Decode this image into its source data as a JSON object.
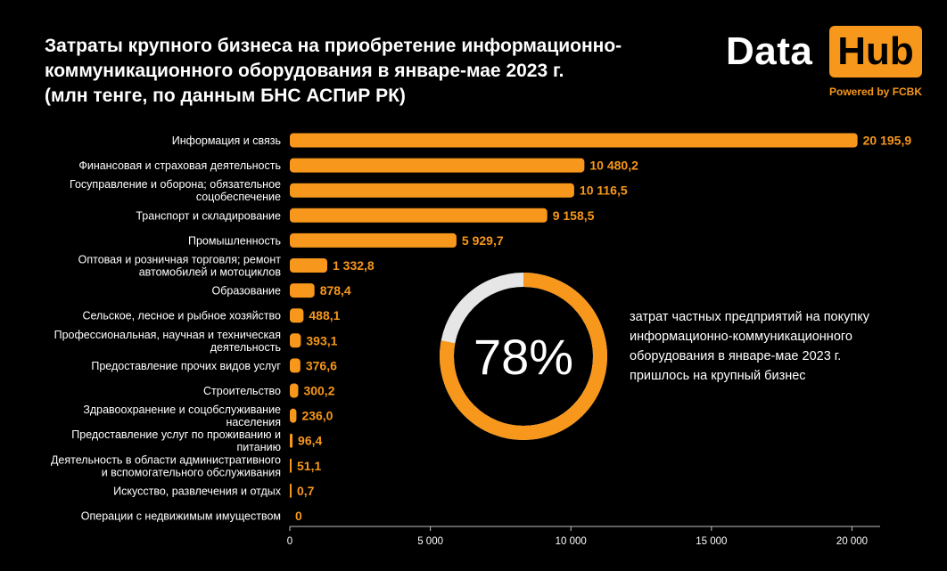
{
  "title_lines": [
    "Затраты крупного бизнеса на приобретение информационно-",
    "коммуникационного оборудования  в январе-мае 2023 г.",
    "(млн тенге, по данным БНС АСПиР РК)"
  ],
  "logo": {
    "data_text": "Data",
    "hub_text": "Hub",
    "powered_text": "Powered by FCBK"
  },
  "colors": {
    "accent": "#f7971b",
    "donut_rest": "#e6e6e6",
    "background": "#000000",
    "text": "#ffffff"
  },
  "chart_data": [
    {
      "type": "bar",
      "orientation": "horizontal",
      "categories": [
        [
          "Информация и связь"
        ],
        [
          "Финансовая и страховая деятельность"
        ],
        [
          "Госуправление и оборона; обязательное",
          "соцобеспечение"
        ],
        [
          "Транспорт и складирование"
        ],
        [
          "Промышленность"
        ],
        [
          "Оптовая и розничная торговля; ремонт",
          "автомобилей и мотоциклов"
        ],
        [
          "Образование"
        ],
        [
          "Сельское, лесное и рыбное хозяйство"
        ],
        [
          "Профессиональная, научная и техническая",
          "деятельность"
        ],
        [
          "Предоставление прочих видов услуг"
        ],
        [
          "Строительство"
        ],
        [
          "Здравоохранение и соцобслуживание",
          "населения"
        ],
        [
          "Предоставление услуг по проживанию и",
          "питанию"
        ],
        [
          "Деятельность в области административного",
          "и вспомогательного обслуживания"
        ],
        [
          "Искусство, развлечения и отдых"
        ],
        [
          "Операции с недвижимым имуществом"
        ]
      ],
      "values": [
        20195.9,
        10480.2,
        10116.5,
        9158.5,
        5929.7,
        1332.8,
        878.4,
        488.1,
        393.1,
        376.6,
        300.2,
        236.0,
        96.4,
        51.1,
        0.7,
        0
      ],
      "value_labels": [
        "20 195,9",
        "10 480,2",
        "10 116,5",
        "9 158,5",
        "5 929,7",
        "1 332,8",
        "878,4",
        "488,1",
        "393,1",
        "376,6",
        "300,2",
        "236,0",
        "96,4",
        "51,1",
        "0,7",
        "0"
      ],
      "xlim": [
        0,
        21000
      ],
      "x_ticks": [
        0,
        5000,
        10000,
        15000,
        20000
      ],
      "x_tick_labels": [
        "0",
        "5 000",
        "10 000",
        "15 000",
        "20 000"
      ],
      "grid": false,
      "legend": "none"
    },
    {
      "type": "pie",
      "style": "donut",
      "value": 78,
      "value_label": "78%",
      "description_lines": [
        "затрат частных предприятий на покупку",
        "информационно-коммуникационного",
        "оборудования в январе-мае 2023 г.",
        "пришлось на крупный бизнес"
      ]
    }
  ]
}
